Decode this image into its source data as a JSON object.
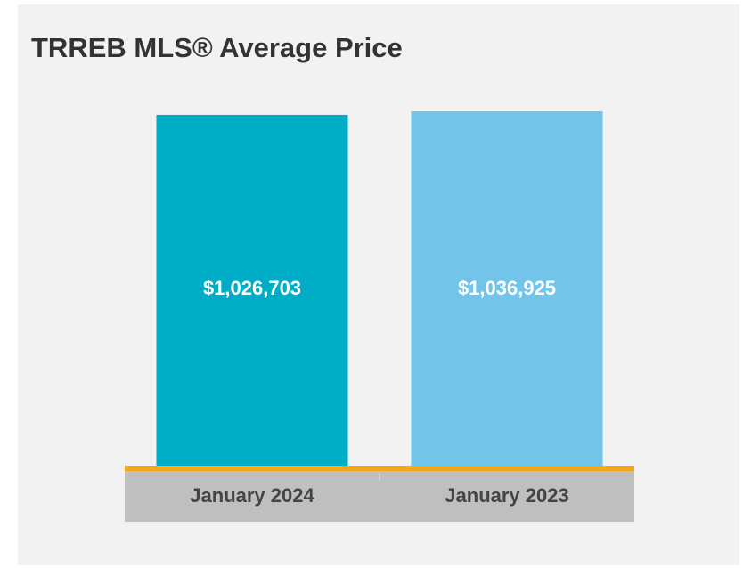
{
  "chart_data": {
    "type": "bar",
    "title": "TRREB MLS® Average Price",
    "categories": [
      "January 2024",
      "January 2023"
    ],
    "values": [
      1026703,
      1036925
    ],
    "value_labels": [
      "$1,026,703",
      "$1,036,925"
    ],
    "colors": [
      "#00adc6",
      "#72c4e9"
    ]
  }
}
